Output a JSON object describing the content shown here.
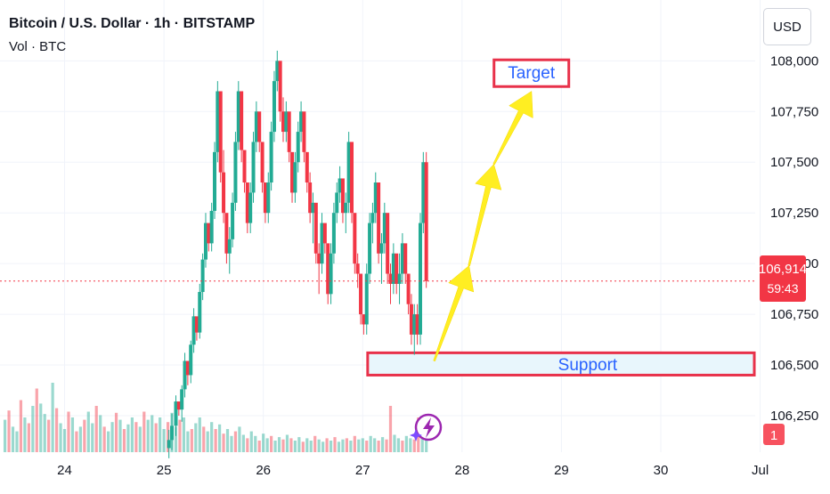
{
  "header": {
    "title": "Bitcoin / U.S. Dollar · 1h · BITSTAMP",
    "volume_label": "Vol · BTC",
    "currency": "USD"
  },
  "price_badge": {
    "price": "106,914",
    "countdown": "59:43"
  },
  "alert_badge": "1",
  "annotations": {
    "target_label": "Target",
    "support_label": "Support",
    "support_zone": [
      106450,
      106560
    ],
    "target_price": 107860,
    "arrow_path": [
      {
        "day": 27.72,
        "price": 106520
      },
      {
        "day": 28.07,
        "price": 106990
      },
      {
        "day": 28.32,
        "price": 107490
      },
      {
        "day": 28.7,
        "price": 107850
      }
    ]
  },
  "colors": {
    "up": "#22ab94",
    "down": "#f23645",
    "arrow": "#ffee22",
    "annotation_border": "#e8314a",
    "annotation_text": "#2962ff",
    "support_fill": "#e8f6fc"
  },
  "chart_data": {
    "type": "candlestick",
    "title": "Bitcoin / U.S. Dollar · 1h · BITSTAMP",
    "x_axis": {
      "ticks": [
        "24",
        "25",
        "26",
        "27",
        "28",
        "29",
        "30",
        "Jul"
      ],
      "range": [
        23.35,
        30.95
      ]
    },
    "y_axis": {
      "ticks": [
        "106,250",
        "106,500",
        "106,750",
        "107,000",
        "107,250",
        "107,500",
        "107,750",
        "108,000"
      ],
      "range": [
        106070,
        108300
      ]
    },
    "last_price": 106914,
    "candles_ohlc": [
      [
        25.05,
        106090,
        106180,
        106040,
        106130
      ],
      [
        25.08,
        106130,
        106260,
        106080,
        106200
      ],
      [
        25.12,
        106200,
        106350,
        106150,
        106320
      ],
      [
        25.15,
        106320,
        106300,
        106250,
        106280
      ],
      [
        25.18,
        106280,
        106400,
        106220,
        106380
      ],
      [
        25.21,
        106380,
        106560,
        106340,
        106520
      ],
      [
        25.24,
        106520,
        106480,
        106400,
        106450
      ],
      [
        25.27,
        106450,
        106620,
        106410,
        106600
      ],
      [
        25.3,
        106600,
        106780,
        106560,
        106740
      ],
      [
        25.33,
        106740,
        106700,
        106620,
        106660
      ],
      [
        25.36,
        106660,
        106900,
        106630,
        106860
      ],
      [
        25.39,
        106860,
        107050,
        106820,
        107020
      ],
      [
        25.42,
        107020,
        107250,
        106980,
        107200
      ],
      [
        25.45,
        107200,
        107150,
        107060,
        107100
      ],
      [
        25.48,
        107100,
        107300,
        107060,
        107260
      ],
      [
        25.51,
        107260,
        107600,
        107220,
        107550
      ],
      [
        25.54,
        107550,
        107900,
        107500,
        107850
      ],
      [
        25.57,
        107850,
        107700,
        107400,
        107450
      ],
      [
        25.6,
        107450,
        107560,
        107200,
        107250
      ],
      [
        25.63,
        107250,
        107200,
        107000,
        107050
      ],
      [
        25.66,
        107050,
        107180,
        106950,
        107120
      ],
      [
        25.69,
        107120,
        107350,
        107080,
        107300
      ],
      [
        25.72,
        107300,
        107650,
        107260,
        107600
      ],
      [
        25.75,
        107600,
        107900,
        107560,
        107850
      ],
      [
        25.78,
        107850,
        107720,
        107500,
        107560
      ],
      [
        25.81,
        107560,
        107480,
        107350,
        107400
      ],
      [
        25.84,
        107400,
        107380,
        107150,
        107200
      ],
      [
        25.87,
        107200,
        107400,
        107150,
        107350
      ],
      [
        25.9,
        107350,
        107650,
        107300,
        107600
      ],
      [
        25.93,
        107600,
        107800,
        107550,
        107750
      ],
      [
        25.96,
        107750,
        107640,
        107550,
        107600
      ],
      [
        25.99,
        107600,
        107560,
        107350,
        107400
      ],
      [
        26.02,
        107400,
        107350,
        107200,
        107250
      ],
      [
        26.05,
        107250,
        107450,
        107200,
        107400
      ],
      [
        26.08,
        107400,
        107700,
        107360,
        107650
      ],
      [
        26.11,
        107650,
        107950,
        107600,
        107900
      ],
      [
        26.14,
        107900,
        108050,
        107850,
        108000
      ],
      [
        26.17,
        108000,
        107900,
        107700,
        107750
      ],
      [
        26.2,
        107750,
        107820,
        107600,
        107650
      ],
      [
        26.23,
        107650,
        107800,
        107600,
        107750
      ],
      [
        26.26,
        107750,
        107700,
        107500,
        107550
      ],
      [
        26.29,
        107550,
        107450,
        107300,
        107350
      ],
      [
        26.32,
        107350,
        107550,
        107300,
        107500
      ],
      [
        26.35,
        107500,
        107700,
        107450,
        107650
      ],
      [
        26.38,
        107650,
        107800,
        107600,
        107750
      ],
      [
        26.41,
        107750,
        107680,
        107500,
        107550
      ],
      [
        26.44,
        107550,
        107500,
        107350,
        107400
      ],
      [
        26.47,
        107400,
        107450,
        107200,
        107250
      ],
      [
        26.5,
        107250,
        107350,
        107100,
        107300
      ],
      [
        26.53,
        107300,
        107250,
        107000,
        107050
      ],
      [
        26.56,
        107050,
        107100,
        106850,
        107000
      ],
      [
        26.59,
        107000,
        107250,
        106950,
        107200
      ],
      [
        26.62,
        107200,
        107180,
        107050,
        107100
      ],
      [
        26.65,
        107100,
        107050,
        106800,
        106850
      ],
      [
        26.68,
        106850,
        107100,
        106800,
        107050
      ],
      [
        26.71,
        107050,
        107300,
        107000,
        107250
      ],
      [
        26.74,
        107250,
        107400,
        107200,
        107350
      ],
      [
        26.77,
        107350,
        107480,
        107300,
        107420
      ],
      [
        26.8,
        107420,
        107380,
        107200,
        107250
      ],
      [
        26.83,
        107250,
        107350,
        107150,
        107300
      ],
      [
        26.86,
        107300,
        107650,
        107250,
        107600
      ],
      [
        26.89,
        107600,
        107550,
        107200,
        107250
      ],
      [
        26.92,
        107250,
        107200,
        106950,
        107000
      ],
      [
        26.95,
        107000,
        107050,
        106880,
        106950
      ],
      [
        26.98,
        106950,
        106920,
        106700,
        106750
      ],
      [
        27.01,
        106750,
        106720,
        106650,
        106700
      ],
      [
        27.04,
        106700,
        107000,
        106650,
        106950
      ],
      [
        27.07,
        106950,
        107250,
        106900,
        107200
      ],
      [
        27.1,
        107200,
        107300,
        107100,
        107250
      ],
      [
        27.13,
        107250,
        107450,
        107200,
        107400
      ],
      [
        27.16,
        107400,
        107350,
        107000,
        107050
      ],
      [
        27.19,
        107050,
        107150,
        106900,
        107100
      ],
      [
        27.22,
        107100,
        107300,
        107050,
        107250
      ],
      [
        27.25,
        107250,
        107150,
        106900,
        106950
      ],
      [
        27.28,
        106950,
        107000,
        106800,
        106900
      ],
      [
        27.31,
        106900,
        107100,
        106850,
        107050
      ],
      [
        27.34,
        107050,
        107000,
        106850,
        106900
      ],
      [
        27.37,
        106900,
        107050,
        106800,
        106950
      ],
      [
        27.4,
        106950,
        107150,
        106900,
        107100
      ],
      [
        27.43,
        107100,
        107050,
        106900,
        106950
      ],
      [
        27.46,
        106950,
        106950,
        106750,
        106800
      ],
      [
        27.49,
        106800,
        106850,
        106600,
        106650
      ],
      [
        27.52,
        106650,
        106800,
        106550,
        106750
      ],
      [
        27.55,
        106750,
        106800,
        106600,
        106650
      ],
      [
        27.58,
        106650,
        107250,
        106600,
        107200
      ],
      [
        27.61,
        107200,
        107550,
        107150,
        107500
      ],
      [
        27.64,
        107500,
        107550,
        106880,
        106914
      ]
    ],
    "volume_bars": [
      [
        23.4,
        0.28,
        "up"
      ],
      [
        23.44,
        0.36,
        "down"
      ],
      [
        23.48,
        0.22,
        "up"
      ],
      [
        23.52,
        0.18,
        "up"
      ],
      [
        23.56,
        0.45,
        "down"
      ],
      [
        23.6,
        0.3,
        "up"
      ],
      [
        23.64,
        0.25,
        "down"
      ],
      [
        23.68,
        0.4,
        "up"
      ],
      [
        23.72,
        0.55,
        "down"
      ],
      [
        23.76,
        0.42,
        "up"
      ],
      [
        23.8,
        0.33,
        "up"
      ],
      [
        23.84,
        0.28,
        "down"
      ],
      [
        23.88,
        0.6,
        "up"
      ],
      [
        23.92,
        0.38,
        "down"
      ],
      [
        23.96,
        0.25,
        "up"
      ],
      [
        24.0,
        0.2,
        "up"
      ],
      [
        24.04,
        0.35,
        "down"
      ],
      [
        24.08,
        0.3,
        "up"
      ],
      [
        24.12,
        0.18,
        "down"
      ],
      [
        24.16,
        0.22,
        "up"
      ],
      [
        24.2,
        0.28,
        "down"
      ],
      [
        24.24,
        0.35,
        "up"
      ],
      [
        24.28,
        0.25,
        "up"
      ],
      [
        24.32,
        0.4,
        "down"
      ],
      [
        24.36,
        0.32,
        "up"
      ],
      [
        24.4,
        0.22,
        "down"
      ],
      [
        24.44,
        0.18,
        "up"
      ],
      [
        24.48,
        0.26,
        "up"
      ],
      [
        24.52,
        0.34,
        "down"
      ],
      [
        24.56,
        0.28,
        "up"
      ],
      [
        24.6,
        0.2,
        "down"
      ],
      [
        24.64,
        0.24,
        "up"
      ],
      [
        24.68,
        0.3,
        "up"
      ],
      [
        24.72,
        0.26,
        "down"
      ],
      [
        24.76,
        0.22,
        "up"
      ],
      [
        24.8,
        0.35,
        "down"
      ],
      [
        24.84,
        0.28,
        "up"
      ],
      [
        24.88,
        0.32,
        "up"
      ],
      [
        24.92,
        0.25,
        "down"
      ],
      [
        24.96,
        0.3,
        "up"
      ],
      [
        25.0,
        0.2,
        "up"
      ],
      [
        25.04,
        0.26,
        "down"
      ],
      [
        25.08,
        0.34,
        "up"
      ],
      [
        25.12,
        0.22,
        "up"
      ],
      [
        25.16,
        0.28,
        "down"
      ],
      [
        25.2,
        0.3,
        "up"
      ],
      [
        25.24,
        0.18,
        "up"
      ],
      [
        25.28,
        0.2,
        "down"
      ],
      [
        25.32,
        0.25,
        "up"
      ],
      [
        25.36,
        0.3,
        "up"
      ],
      [
        25.4,
        0.22,
        "down"
      ],
      [
        25.44,
        0.18,
        "up"
      ],
      [
        25.48,
        0.26,
        "up"
      ],
      [
        25.52,
        0.2,
        "down"
      ],
      [
        25.56,
        0.24,
        "up"
      ],
      [
        25.6,
        0.16,
        "down"
      ],
      [
        25.64,
        0.2,
        "up"
      ],
      [
        25.68,
        0.14,
        "up"
      ],
      [
        25.72,
        0.18,
        "down"
      ],
      [
        25.76,
        0.22,
        "up"
      ],
      [
        25.8,
        0.15,
        "up"
      ],
      [
        25.84,
        0.12,
        "down"
      ],
      [
        25.88,
        0.18,
        "up"
      ],
      [
        25.92,
        0.14,
        "up"
      ],
      [
        25.96,
        0.1,
        "down"
      ],
      [
        26.0,
        0.16,
        "up"
      ],
      [
        26.04,
        0.12,
        "up"
      ],
      [
        26.08,
        0.14,
        "down"
      ],
      [
        26.12,
        0.1,
        "up"
      ],
      [
        26.16,
        0.13,
        "up"
      ],
      [
        26.2,
        0.11,
        "down"
      ],
      [
        26.24,
        0.15,
        "up"
      ],
      [
        26.28,
        0.12,
        "down"
      ],
      [
        26.32,
        0.1,
        "up"
      ],
      [
        26.36,
        0.13,
        "up"
      ],
      [
        26.4,
        0.09,
        "down"
      ],
      [
        26.44,
        0.12,
        "up"
      ],
      [
        26.48,
        0.1,
        "up"
      ],
      [
        26.52,
        0.14,
        "down"
      ],
      [
        26.56,
        0.11,
        "up"
      ],
      [
        26.6,
        0.09,
        "up"
      ],
      [
        26.64,
        0.12,
        "down"
      ],
      [
        26.68,
        0.1,
        "up"
      ],
      [
        26.72,
        0.13,
        "down"
      ],
      [
        26.76,
        0.09,
        "up"
      ],
      [
        26.8,
        0.11,
        "up"
      ],
      [
        26.84,
        0.12,
        "down"
      ],
      [
        26.88,
        0.1,
        "up"
      ],
      [
        26.92,
        0.14,
        "down"
      ],
      [
        26.96,
        0.11,
        "up"
      ],
      [
        27.0,
        0.12,
        "up"
      ],
      [
        27.04,
        0.1,
        "down"
      ],
      [
        27.08,
        0.14,
        "up"
      ],
      [
        27.12,
        0.12,
        "up"
      ],
      [
        27.16,
        0.1,
        "down"
      ],
      [
        27.2,
        0.13,
        "up"
      ],
      [
        27.24,
        0.11,
        "down"
      ],
      [
        27.28,
        0.4,
        "down"
      ],
      [
        27.32,
        0.15,
        "up"
      ],
      [
        27.36,
        0.12,
        "up"
      ],
      [
        27.4,
        0.1,
        "down"
      ],
      [
        27.44,
        0.14,
        "up"
      ],
      [
        27.48,
        0.12,
        "up"
      ],
      [
        27.52,
        0.11,
        "down"
      ],
      [
        27.56,
        0.3,
        "down"
      ],
      [
        27.6,
        0.2,
        "up"
      ],
      [
        27.64,
        0.16,
        "up"
      ]
    ]
  }
}
